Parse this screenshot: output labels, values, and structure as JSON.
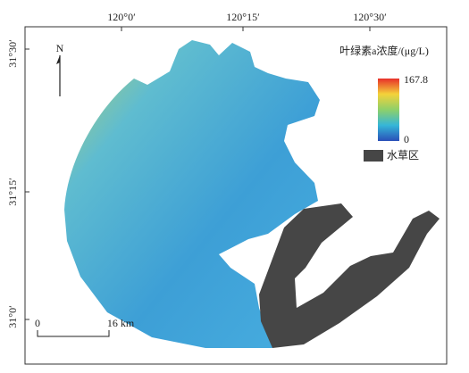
{
  "map": {
    "lon_labels": [
      "120°0′",
      "120°15′",
      "120°30′"
    ],
    "lat_labels": [
      "31°30′",
      "31°15′",
      "31°0′"
    ],
    "north": "N",
    "legend": {
      "title": "叶绿素a浓度/(μg/L)",
      "max": 167.8,
      "min": 0,
      "aquatic_label": "水草区"
    },
    "scale_bar": {
      "start": "0",
      "end": "16 km"
    }
  }
}
